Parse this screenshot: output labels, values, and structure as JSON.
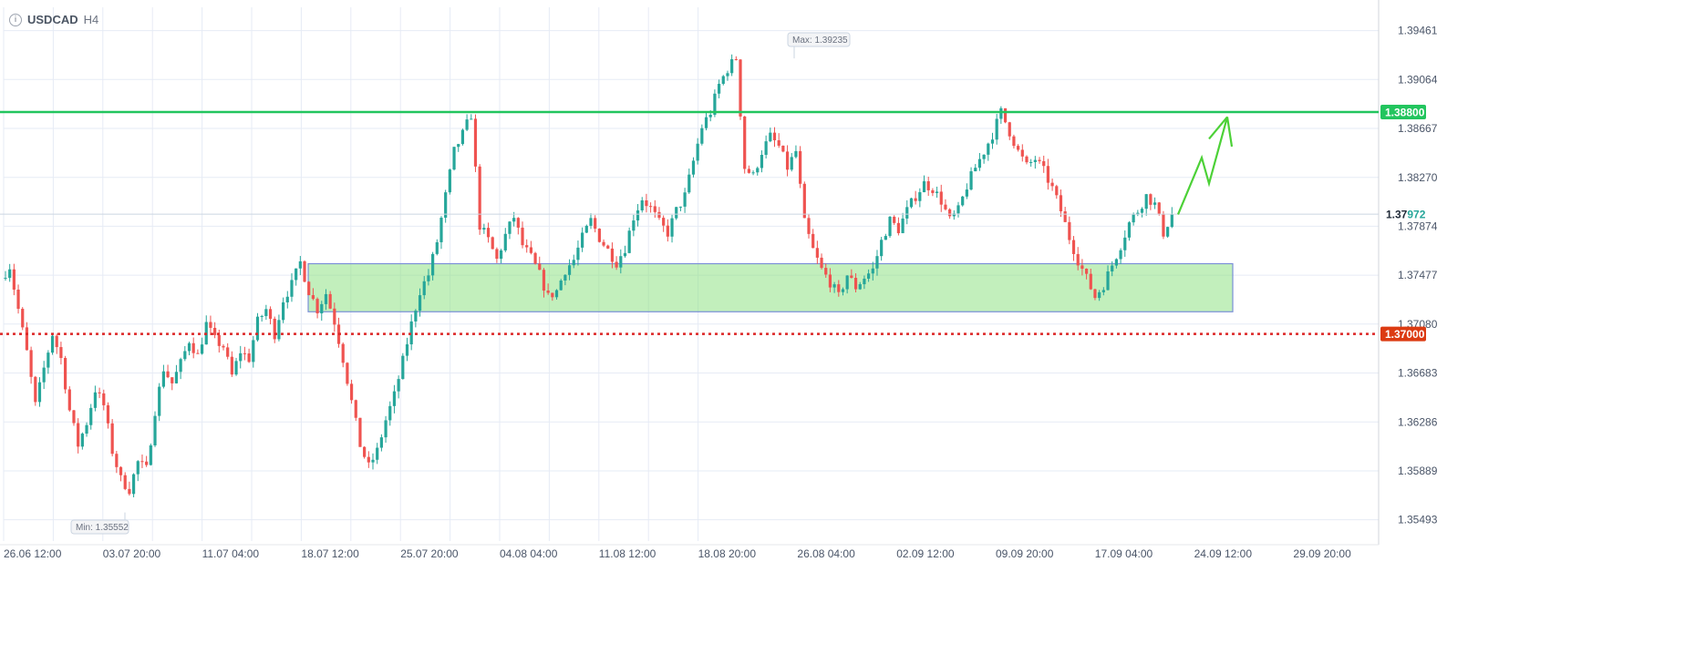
{
  "header": {
    "symbol": "USDCAD",
    "timeframe": "H4",
    "info_icon": "info-circle-icon"
  },
  "colors": {
    "bull": "#26a69a",
    "bear": "#ef5350",
    "resistance": "#22c55e",
    "support": "#dc2626",
    "zone_fill": "#86e07a",
    "zone_stroke": "#7b8fd8",
    "projection": "#4cd137",
    "grid": "#e6ebf5",
    "axis_text": "#4a5568"
  },
  "chart_data": {
    "type": "candlestick",
    "instrument": "USDCAD",
    "interval": "H4",
    "y_ticks": [
      "1.39461",
      "1.39064",
      "1.38667",
      "1.38270",
      "1.37874",
      "1.37477",
      "1.37080",
      "1.36683",
      "1.36286",
      "1.35889",
      "1.35493"
    ],
    "x_ticks": [
      "26.06 12:00",
      "03.07 20:00",
      "11.07 04:00",
      "18.07 12:00",
      "25.07 20:00",
      "04.08 04:00",
      "11.08 12:00",
      "18.08 20:00",
      "26.08 04:00",
      "02.09 12:00",
      "09.09 20:00",
      "17.09 04:00",
      "24.09 12:00",
      "29.09 20:00"
    ],
    "ylim": [
      1.3532,
      1.3965
    ],
    "max_label": "Max: 1.39235",
    "min_label": "Min: 1.35552",
    "max_value": 1.39235,
    "min_value": 1.35552,
    "last_price": "1.37972",
    "last_price_prefix": "1.37",
    "last_price_suffix": "972",
    "resistance_level": "1.38800",
    "support_level": "1.37000",
    "demand_zone": {
      "low": 1.3718,
      "high": 1.3757
    },
    "projection_path": [
      1.3797,
      1.3843,
      1.3822,
      1.3876,
      1.3852
    ],
    "price_path": [
      1.3745,
      1.3755,
      1.372,
      1.3685,
      1.3642,
      1.3672,
      1.37,
      1.368,
      1.3638,
      1.361,
      1.3628,
      1.3655,
      1.3642,
      1.3605,
      1.3582,
      1.3574,
      1.3596,
      1.359,
      1.3638,
      1.3672,
      1.366,
      1.3676,
      1.3695,
      1.3682,
      1.3708,
      1.3695,
      1.369,
      1.3666,
      1.3686,
      1.368,
      1.371,
      1.372,
      1.37,
      1.3728,
      1.374,
      1.3758,
      1.3735,
      1.372,
      1.3733,
      1.371,
      1.368,
      1.3645,
      1.361,
      1.3592,
      1.3605,
      1.363,
      1.365,
      1.3678,
      1.3708,
      1.3735,
      1.3748,
      1.3775,
      1.3812,
      1.3848,
      1.3862,
      1.3878,
      1.3788,
      1.3776,
      1.376,
      1.378,
      1.3795,
      1.3772,
      1.3762,
      1.3748,
      1.373,
      1.3735,
      1.3752,
      1.376,
      1.3778,
      1.3792,
      1.3778,
      1.3768,
      1.3758,
      1.377,
      1.3795,
      1.381,
      1.3802,
      1.379,
      1.3782,
      1.38,
      1.3812,
      1.384,
      1.3868,
      1.388,
      1.3902,
      1.3915,
      1.3924,
      1.3835,
      1.3828,
      1.3848,
      1.386,
      1.3852,
      1.3835,
      1.3848,
      1.379,
      1.3768,
      1.3752,
      1.3742,
      1.373,
      1.3748,
      1.3738,
      1.3746,
      1.3752,
      1.3775,
      1.3792,
      1.3785,
      1.38,
      1.3812,
      1.3822,
      1.3818,
      1.3808,
      1.3792,
      1.38,
      1.382,
      1.3835,
      1.3848,
      1.3862,
      1.388,
      1.3864,
      1.3848,
      1.3836,
      1.3842,
      1.3832,
      1.3818,
      1.38,
      1.3778,
      1.376,
      1.3745,
      1.373,
      1.374,
      1.3756,
      1.3772,
      1.379,
      1.38,
      1.3812,
      1.3805,
      1.3782,
      1.3797
    ]
  }
}
